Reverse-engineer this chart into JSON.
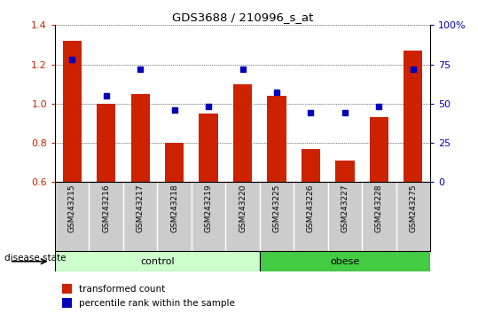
{
  "title": "GDS3688 / 210996_s_at",
  "samples": [
    "GSM243215",
    "GSM243216",
    "GSM243217",
    "GSM243218",
    "GSM243219",
    "GSM243220",
    "GSM243225",
    "GSM243226",
    "GSM243227",
    "GSM243228",
    "GSM243275"
  ],
  "transformed_count": [
    1.32,
    1.0,
    1.05,
    0.8,
    0.95,
    1.1,
    1.04,
    0.77,
    0.71,
    0.93,
    1.27
  ],
  "percentile_rank": [
    78,
    55,
    72,
    46,
    48,
    72,
    57,
    44,
    44,
    48,
    72
  ],
  "ylim_left": [
    0.6,
    1.4
  ],
  "ylim_right": [
    0,
    100
  ],
  "yticks_left": [
    0.6,
    0.8,
    1.0,
    1.2,
    1.4
  ],
  "yticks_right": [
    0,
    25,
    50,
    75,
    100
  ],
  "ytick_labels_right": [
    "0",
    "25",
    "50",
    "75",
    "100%"
  ],
  "bar_color": "#cc2200",
  "dot_color": "#0000bb",
  "bar_width": 0.55,
  "n_control": 6,
  "n_obese": 5,
  "control_color": "#ccffcc",
  "obese_color": "#44cc44",
  "control_label": "control",
  "obese_label": "obese",
  "legend_bar_label": "transformed count",
  "legend_dot_label": "percentile rank within the sample",
  "disease_state_label": "disease state",
  "tick_label_color_left": "#cc2200",
  "tick_label_color_right": "#0000bb",
  "xlabel_area_color": "#cccccc",
  "plot_bg": "#ffffff"
}
